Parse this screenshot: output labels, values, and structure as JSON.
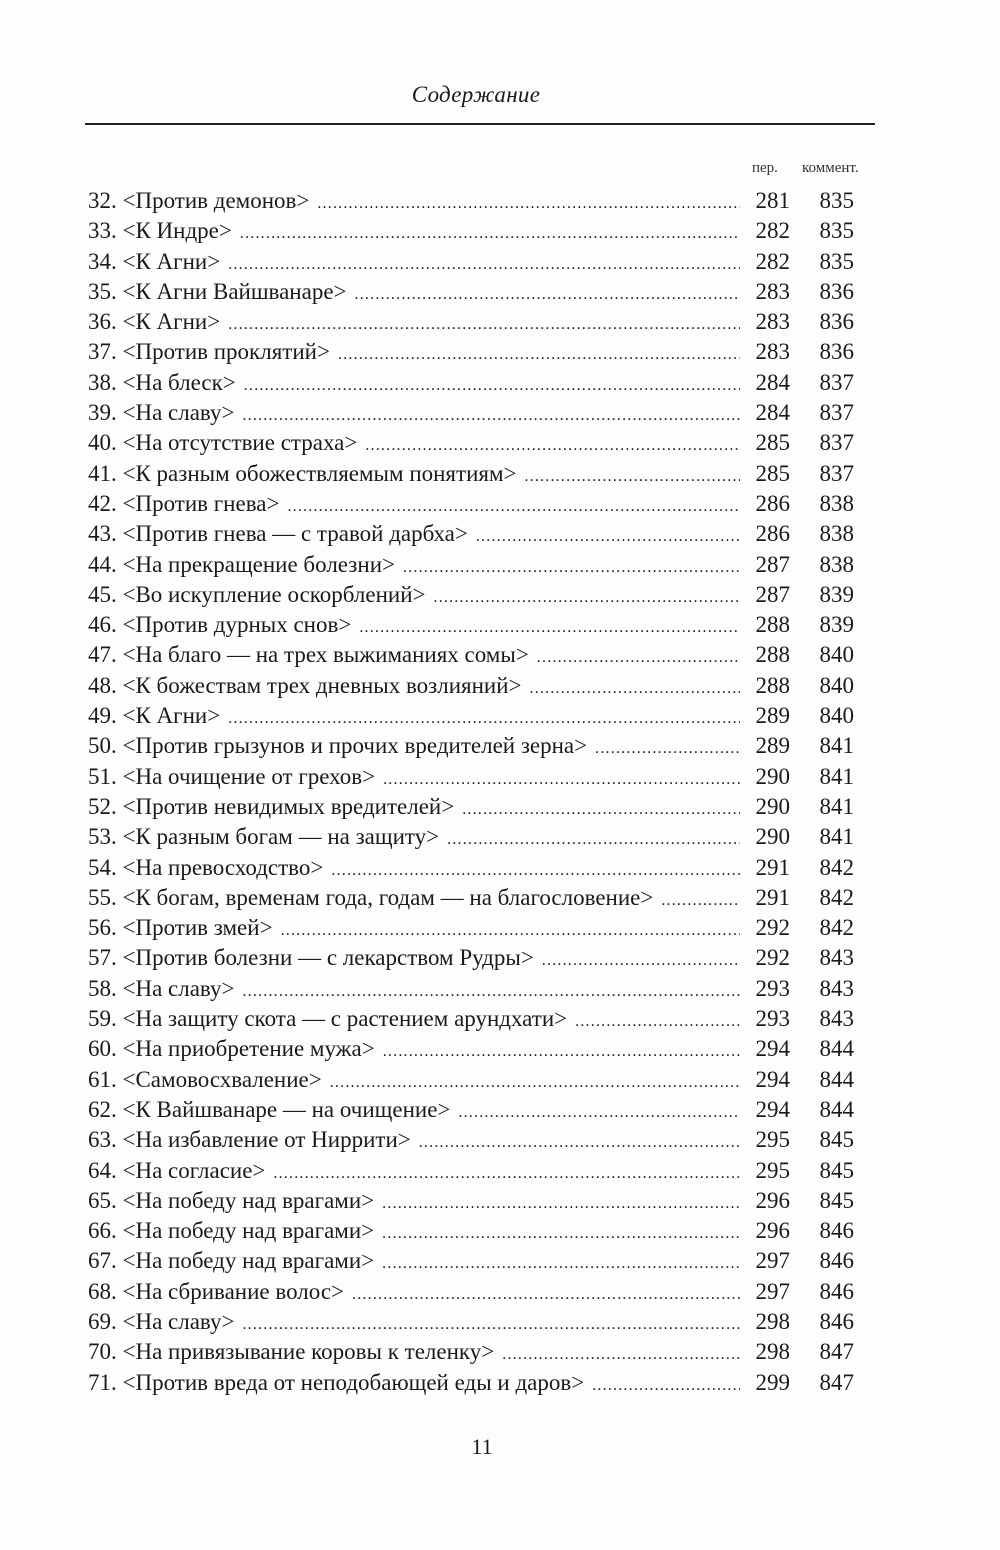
{
  "running_head": "Содержание",
  "columns": {
    "page": "пер.",
    "comment": "коммент."
  },
  "entries": [
    {
      "title": "32. <Против демонов>",
      "page": "281",
      "comment": "835"
    },
    {
      "title": "33. <К Индре>",
      "page": "282",
      "comment": "835"
    },
    {
      "title": "34. <К Агни>",
      "page": "282",
      "comment": "835"
    },
    {
      "title": "35. <К Агни Вайшванаре>",
      "page": "283",
      "comment": "836"
    },
    {
      "title": "36. <К Агни>",
      "page": "283",
      "comment": "836"
    },
    {
      "title": "37. <Против проклятий>",
      "page": "283",
      "comment": "836"
    },
    {
      "title": "38. <На блеск>",
      "page": "284",
      "comment": "837"
    },
    {
      "title": "39. <На славу>",
      "page": "284",
      "comment": "837"
    },
    {
      "title": "40. <На отсутствие страха>",
      "page": "285",
      "comment": "837"
    },
    {
      "title": "41. <К разным обожествляемым понятиям>",
      "page": "285",
      "comment": "837"
    },
    {
      "title": "42. <Против гнева>",
      "page": "286",
      "comment": "838"
    },
    {
      "title": "43. <Против гнева — с травой дарбха>",
      "page": "286",
      "comment": "838"
    },
    {
      "title": "44. <На прекращение болезни>",
      "page": "287",
      "comment": "838"
    },
    {
      "title": "45. <Во искупление оскорблений>",
      "page": "287",
      "comment": "839"
    },
    {
      "title": "46. <Против дурных снов>",
      "page": "288",
      "comment": "839"
    },
    {
      "title": "47. <На благо — на трех выжиманиях сомы>",
      "page": "288",
      "comment": "840"
    },
    {
      "title": "48. <К божествам трех дневных возлияний>",
      "page": "288",
      "comment": "840"
    },
    {
      "title": "49. <К Агни>",
      "page": "289",
      "comment": "840"
    },
    {
      "title": "50. <Против грызунов и прочих вредителей зерна>",
      "page": "289",
      "comment": "841"
    },
    {
      "title": "51. <На очищение от грехов>",
      "page": "290",
      "comment": "841"
    },
    {
      "title": "52. <Против невидимых вредителей>",
      "page": "290",
      "comment": "841"
    },
    {
      "title": "53. <К разным богам — на защиту>",
      "page": "290",
      "comment": "841"
    },
    {
      "title": "54. <На превосходство>",
      "page": "291",
      "comment": "842"
    },
    {
      "title": "55. <К богам, временам года, годам — на благословение>",
      "page": "291",
      "comment": "842"
    },
    {
      "title": "56. <Против змей>",
      "page": "292",
      "comment": "842"
    },
    {
      "title": "57. <Против болезни — с лекарством Рудры>",
      "page": "292",
      "comment": "843"
    },
    {
      "title": "58. <На славу>",
      "page": "293",
      "comment": "843"
    },
    {
      "title": "59. <На защиту скота — с растением арундхати>",
      "page": "293",
      "comment": "843"
    },
    {
      "title": "60. <На приобретение мужа>",
      "page": "294",
      "comment": "844"
    },
    {
      "title": "61. <Самовосхваление>",
      "page": "294",
      "comment": "844"
    },
    {
      "title": "62. <К Вайшванаре — на очищение>",
      "page": "294",
      "comment": "844"
    },
    {
      "title": "63. <На избавление от Ниррити>",
      "page": "295",
      "comment": "845"
    },
    {
      "title": "64. <На согласие>",
      "page": "295",
      "comment": "845"
    },
    {
      "title": "65. <На победу над врагами>",
      "page": "296",
      "comment": "845"
    },
    {
      "title": "66. <На победу над врагами>",
      "page": "296",
      "comment": "846"
    },
    {
      "title": "67. <На победу над врагами>",
      "page": "297",
      "comment": "846"
    },
    {
      "title": "68. <На сбривание волос>",
      "page": "297",
      "comment": "846"
    },
    {
      "title": "69. <На славу>",
      "page": "298",
      "comment": "846"
    },
    {
      "title": "70. <На привязывание коровы к теленку>",
      "page": "298",
      "comment": "847"
    },
    {
      "title": "71. <Против вреда от неподобающей еды и даров>",
      "page": "299",
      "comment": "847"
    }
  ],
  "folio": "11"
}
